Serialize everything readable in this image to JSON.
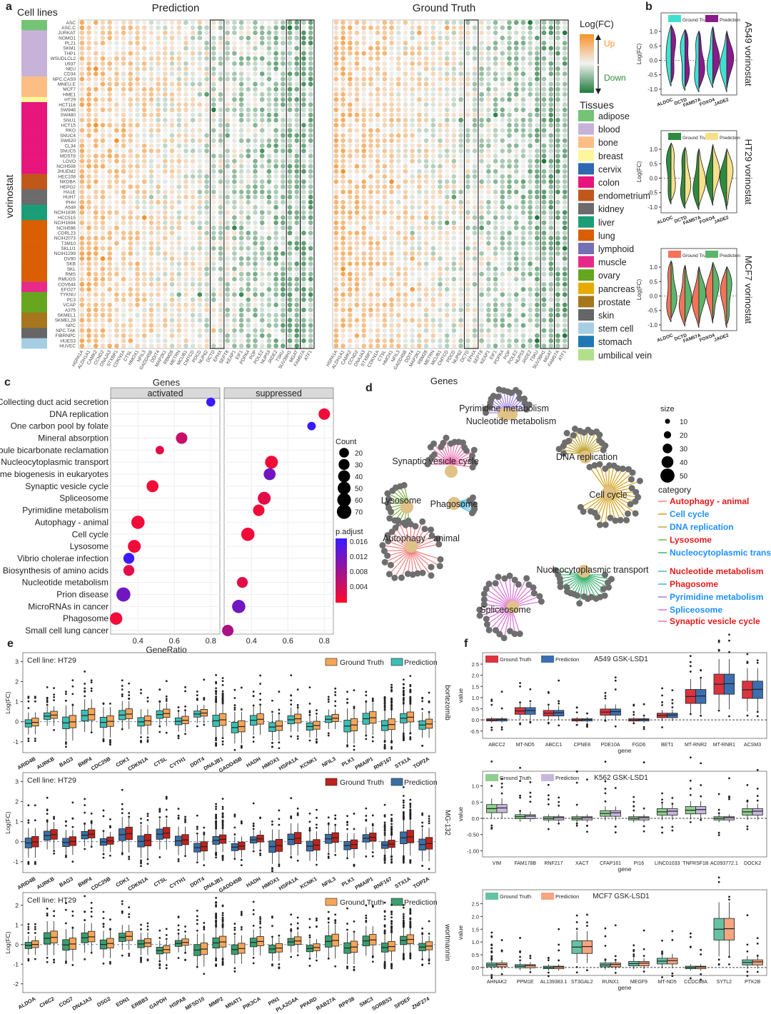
{
  "panels": {
    "a": "a",
    "b": "b",
    "c": "c",
    "d": "d",
    "e": "e",
    "f": "f"
  },
  "panel_a": {
    "cell_lines_label": "Cell lines",
    "drug_label": "vorinostat",
    "title_left": "Prediction",
    "title_right": "Ground Truth",
    "xlabel": "Genes",
    "cell_lines": [
      "ASC",
      "ASC.C",
      "JURKAT",
      "NOMO1",
      "PL21",
      "SKM1",
      "THP1",
      "WSUDLCL2",
      "U937",
      "NEU",
      "CD34",
      "NPC.CAS9",
      "MNEU.E",
      "MCF7",
      "HME1",
      "HT29",
      "HCT116",
      "SW948",
      "SW480",
      "SNU1",
      "HCT15",
      "RKO",
      "SNUC4",
      "SW620",
      "CL34",
      "SNUC5",
      "MDST8",
      "LOVO",
      "NCIH508",
      "JHUEM2",
      "HEC108",
      "NKDBA",
      "HEPG2",
      "HA1E",
      "HUH7",
      "PHH",
      "A549",
      "NCIH1836",
      "HCC515",
      "NCIH1694",
      "NCIH596",
      "CORL23",
      "NCIH2073",
      "T3M10",
      "SKLU1",
      "NCIH1299",
      "DV90",
      "SKB",
      "SKL",
      "RMS",
      "RMUGS",
      "COV644",
      "EFO27",
      "TYKNU",
      "PC3",
      "VCAP",
      "A375",
      "SKMEL1",
      "SKMEL28",
      "NPC",
      "NPC.TAK",
      "FIBRNPC",
      "HUES3",
      "HUVEC"
    ],
    "tissues_order": [
      "adipose",
      "blood",
      "bone",
      "breast",
      "colon",
      "endometrium",
      "kidney",
      "liver",
      "lung",
      "muscle",
      "ovary",
      "prostate",
      "skin",
      "stem cell",
      "stomach",
      "umbilical vein"
    ],
    "genes": [
      "HSPA1A",
      "ALDH1A1",
      "CAMK2",
      "CCND2",
      "DNAJA3",
      "STXBP1",
      "CDKN1A",
      "CTSL",
      "HMOX1",
      "NFIL3",
      "GADD45B",
      "DDIT4",
      "MAP2K1",
      "RBM28",
      "METRN",
      "MCUB1",
      "CMTCD",
      "PDCD",
      "NUP62",
      "DCTD",
      "EPHX",
      "SEPT8",
      "KEAP1",
      "EIF1",
      "PDPK4",
      "POP",
      "POLE2",
      "NUP53",
      "JADE2",
      "TSKU",
      "SUV39H1",
      "MGAT",
      "FAM57A",
      "ATF1"
    ],
    "legend_title": "Log(FC)",
    "legend_up": "Up",
    "legend_down": "Down",
    "tissues_title": "Tissues",
    "tissues": [
      {
        "name": "adipose",
        "color": "#74c476"
      },
      {
        "name": "blood",
        "color": "#c7b3d9"
      },
      {
        "name": "bone",
        "color": "#fdbe85"
      },
      {
        "name": "breast",
        "color": "#fff799"
      },
      {
        "name": "cervix",
        "color": "#2e68b0"
      },
      {
        "name": "colon",
        "color": "#e8157d"
      },
      {
        "name": "endometrium",
        "color": "#c0571b"
      },
      {
        "name": "kidney",
        "color": "#6b6b6b"
      },
      {
        "name": "liver",
        "color": "#1b9e77"
      },
      {
        "name": "lung",
        "color": "#d95f02"
      },
      {
        "name": "lymphoid",
        "color": "#7570b3"
      },
      {
        "name": "muscle",
        "color": "#e7298a"
      },
      {
        "name": "ovary",
        "color": "#66a61e"
      },
      {
        "name": "pancreas",
        "color": "#e6ab02"
      },
      {
        "name": "prostate",
        "color": "#a6761d"
      },
      {
        "name": "skin",
        "color": "#666666"
      },
      {
        "name": "stem cell",
        "color": "#a6cee3"
      },
      {
        "name": "stomach",
        "color": "#1f78b4"
      },
      {
        "name": "umbilical vein",
        "color": "#b2df8a"
      }
    ]
  },
  "panel_b": {
    "ylabel": "Log(FC)",
    "yticks": [
      "1.0",
      "0.5",
      "0.0",
      "-0.5",
      "-1.0"
    ],
    "genes": [
      "ALDOC",
      "DCTD",
      "FAM57A",
      "FOXO4",
      "JADE2"
    ],
    "plots": [
      {
        "cell": "A549",
        "drug": "vorinostat",
        "label": "A549  vorinostat",
        "gt_color": "#40e0d0",
        "pred_color": "#8b1a8b",
        "legend": [
          "Ground Truth",
          "Prediction"
        ]
      },
      {
        "cell": "HT29",
        "drug": "vorinostat",
        "label": "HT29  vorinostat",
        "gt_color": "#2e8b3e",
        "pred_color": "#f7e08a",
        "legend": [
          "Ground Truth",
          "Prediction"
        ]
      },
      {
        "cell": "MCF7",
        "drug": "vorinostat",
        "label": "MCF7  vorinostat",
        "gt_color": "#f2735a",
        "pred_color": "#5bb56a",
        "legend": [
          "Ground Truth",
          "Prediction"
        ]
      }
    ]
  },
  "panel_c": {
    "title": "Genes",
    "facets": [
      "activated",
      "suppressed"
    ],
    "xlabel": "GeneRatio",
    "pathways": [
      "Collecting duct acid secretion",
      "DNA replication",
      "One carbon pool by folate",
      "Mineral absorption",
      "Proximal tubule bicarbonate reclamation",
      "Nucleocytoplasmic transport",
      "Ribosome biogenesis in eukaryotes",
      "Synaptic vesicle cycle",
      "Spliceosome",
      "Pyrimidine metabolism",
      "Autophagy - animal",
      "Cell cycle",
      "Lysosome",
      "Vibrio cholerae infection",
      "Biosynthesis of amino acids",
      "Nucleotide metabolism",
      "Prion disease",
      "MicroRNAs in cancer",
      "Phagosome",
      "Small cell lung cancer"
    ],
    "count_title": "Count",
    "count_values": [
      "20",
      "30",
      "40",
      "50",
      "60",
      "70"
    ],
    "padj_title": "p.adjust",
    "padj_values": [
      "0.016",
      "0.012",
      "0.008",
      "0.004"
    ],
    "xticks_activated": [
      "0.4",
      "0.6",
      "0.8"
    ],
    "xticks_suppressed": [
      "0.4",
      "0.6",
      "0.8"
    ]
  },
  "panel_d": {
    "size_title": "size",
    "size_values": [
      "10",
      "20",
      "30",
      "40",
      "50"
    ],
    "category_title": "category",
    "categories": [
      {
        "name": "Autophagy - animal",
        "color": "#e41a1c",
        "line": "#f08080"
      },
      {
        "name": "Cell cycle",
        "color": "#1e90ff",
        "line": "#d4a017"
      },
      {
        "name": "DNA replication",
        "color": "#1e90ff",
        "line": "#c2a633"
      },
      {
        "name": "Lysosome",
        "color": "#e41a1c",
        "line": "#7cb342"
      },
      {
        "name": "Nucleocytoplasmic transport",
        "color": "#1e90ff",
        "line": "#3cb371"
      },
      {
        "name": "Nucleotide metabolism",
        "color": "#e41a1c",
        "line": "#40c0c0"
      },
      {
        "name": "Phagosome",
        "color": "#e41a1c",
        "line": "#40b0e0"
      },
      {
        "name": "Pyrimidine metabolism",
        "color": "#1e90ff",
        "line": "#9f7fe0"
      },
      {
        "name": "Spliceosome",
        "color": "#1e90ff",
        "line": "#da70d6"
      },
      {
        "name": "Synaptic vesicle cycle",
        "color": "#e41a1c",
        "line": "#f06fb0"
      }
    ],
    "nodes": [
      "Pyrimidine metabolism",
      "Nucleotide metabolism",
      "Synaptic vesicle cycle",
      "DNA replication",
      "Lysosome",
      "Phagosome",
      "Cell cycle",
      "Autophagy - animal",
      "Nucleocytoplasmic transport",
      "Spliceosome"
    ]
  },
  "panel_e": {
    "genes": [
      "ARID4B",
      "AURKB",
      "BAG3",
      "BMP4",
      "CDC25B",
      "CDK1",
      "CDKN1A",
      "CTSL",
      "CYTH1",
      "DDIT4",
      "DNAJB1",
      "GADD45B",
      "HADH",
      "HMOX1",
      "HSPA1A",
      "KCNK1",
      "NFIL3",
      "PLK1",
      "PMAIP1",
      "RNF167",
      "STX1A",
      "TOP2A"
    ],
    "genes3": [
      "ALDOA",
      "CHIC2",
      "COG7",
      "DNAJA3",
      "DSG2",
      "EDN1",
      "ERBB3",
      "GAPDH",
      "HSPA8",
      "MFSD10",
      "MMP2",
      "MNAT1",
      "PIK3CA",
      "PIN1",
      "PLA2G4A",
      "PPARD",
      "RAB27A",
      "RPP38",
      "SMC3",
      "SORBS3",
      "SPDEF",
      "ZNF274"
    ],
    "ylabel": "Log(FC)",
    "cell_text": "Cell line: HT29",
    "plots": [
      {
        "drug": "bortezomib",
        "gt_color": "#f5a55a",
        "pred_color": "#3bbfb5",
        "yticks": [
          "3",
          "2",
          "1",
          "0",
          "-1"
        ]
      },
      {
        "drug": "MG-132",
        "gt_color": "#c0221c",
        "pred_color": "#3b6fa5",
        "yticks": [
          "3",
          "2",
          "1",
          "0",
          "-1"
        ]
      },
      {
        "drug": "wortmannin",
        "gt_color": "#f5a55a",
        "pred_color": "#3a9e6e",
        "yticks": [
          "2",
          "1",
          "0",
          "-1",
          "-2"
        ]
      }
    ],
    "legend": [
      "Ground Truth",
      "Prediction"
    ]
  },
  "panel_f": {
    "xlabel": "gene",
    "ylabel": "value",
    "plots": [
      {
        "title": "A549  GSK-LSD1",
        "gt_color": "#d9343f",
        "pred_color": "#3d6fb0",
        "genes": [
          "ABCC2",
          "MT-ND5",
          "ABCC1",
          "CPNE8",
          "PDE10A",
          "FGD6",
          "BET1",
          "MT-RNR2",
          "MT-RNR1",
          "ACSM3"
        ],
        "yticks": [
          "2.5",
          "2.0",
          "1.5",
          "1.0",
          "0.5",
          "0.0",
          "-0.5"
        ]
      },
      {
        "title": "K562  GSK-LSD1",
        "gt_color": "#8fce8f",
        "pred_color": "#c8b8dc",
        "genes": [
          "VIM",
          "FAM178B",
          "RNF217",
          "XACT",
          "CFAP161",
          "PI16",
          "LINC01033",
          "TNFRSF1B",
          "AC093772.1",
          "DOCK2"
        ],
        "yticks": [
          "1.0",
          "0.5",
          "0.0",
          "-0.50",
          "-1.00"
        ]
      },
      {
        "title": "MCF7  GSK-LSD1",
        "gt_color": "#66c2a5",
        "pred_color": "#f4a582",
        "genes": [
          "AHNAK2",
          "PPM1E",
          "AL139383.1",
          "ST3GAL2",
          "RUNX1",
          "MEGF9",
          "MT-ND5",
          "CCDC88A",
          "SYTL2",
          "PTK2B"
        ],
        "yticks": [
          "2.5",
          "2.0",
          "1.5",
          "1.0",
          "0.5",
          "0.0"
        ]
      }
    ],
    "legend": [
      "Ground Truth",
      "Prediction"
    ]
  },
  "chart_data": [
    {
      "type": "heatmap",
      "title": "Prediction",
      "xlabel": "Genes",
      "drug": "vorinostat"
    },
    {
      "type": "heatmap",
      "title": "Ground Truth",
      "xlabel": "Genes",
      "drug": "vorinostat"
    },
    {
      "type": "scatter",
      "title": "Genes",
      "xlabel": "GeneRatio",
      "facet": "activated",
      "points": [
        {
          "pathway": "Collecting duct acid secretion",
          "x": 0.8,
          "count": 15,
          "padj": 0.016
        },
        {
          "pathway": "Mineral absorption",
          "x": 0.64,
          "count": 35,
          "padj": 0.006
        },
        {
          "pathway": "Proximal tubule bicarbonate reclamation",
          "x": 0.52,
          "count": 12,
          "padj": 0.004
        },
        {
          "pathway": "Synaptic vesicle cycle",
          "x": 0.48,
          "count": 40,
          "padj": 0.003
        },
        {
          "pathway": "Autophagy - animal",
          "x": 0.4,
          "count": 55,
          "padj": 0.003
        },
        {
          "pathway": "Lysosome",
          "x": 0.38,
          "count": 50,
          "padj": 0.003
        },
        {
          "pathway": "Vibrio cholerae infection",
          "x": 0.35,
          "count": 30,
          "padj": 0.016
        },
        {
          "pathway": "Biosynthesis of amino acids",
          "x": 0.35,
          "count": 30,
          "padj": 0.004
        },
        {
          "pathway": "Prion disease",
          "x": 0.32,
          "count": 65,
          "padj": 0.012
        },
        {
          "pathway": "Phagosome",
          "x": 0.28,
          "count": 45,
          "padj": 0.003
        }
      ]
    },
    {
      "type": "scatter",
      "title": "Genes",
      "xlabel": "GeneRatio",
      "facet": "suppressed",
      "points": [
        {
          "pathway": "DNA replication",
          "x": 0.8,
          "count": 35,
          "padj": 0.003
        },
        {
          "pathway": "One carbon pool by folate",
          "x": 0.73,
          "count": 12,
          "padj": 0.016
        },
        {
          "pathway": "Nucleocytoplasmic transport",
          "x": 0.51,
          "count": 50,
          "padj": 0.003
        },
        {
          "pathway": "Ribosome biogenesis in eukaryotes",
          "x": 0.5,
          "count": 40,
          "padj": 0.012
        },
        {
          "pathway": "Spliceosome",
          "x": 0.47,
          "count": 50,
          "padj": 0.004
        },
        {
          "pathway": "Pyrimidine metabolism",
          "x": 0.44,
          "count": 35,
          "padj": 0.003
        },
        {
          "pathway": "Cell cycle",
          "x": 0.38,
          "count": 55,
          "padj": 0.003
        },
        {
          "pathway": "Nucleotide metabolism",
          "x": 0.35,
          "count": 30,
          "padj": 0.004
        },
        {
          "pathway": "MicroRNAs in cancer",
          "x": 0.33,
          "count": 55,
          "padj": 0.012
        },
        {
          "pathway": "Small cell lung cancer",
          "x": 0.27,
          "count": 35,
          "padj": 0.008
        }
      ]
    }
  ]
}
